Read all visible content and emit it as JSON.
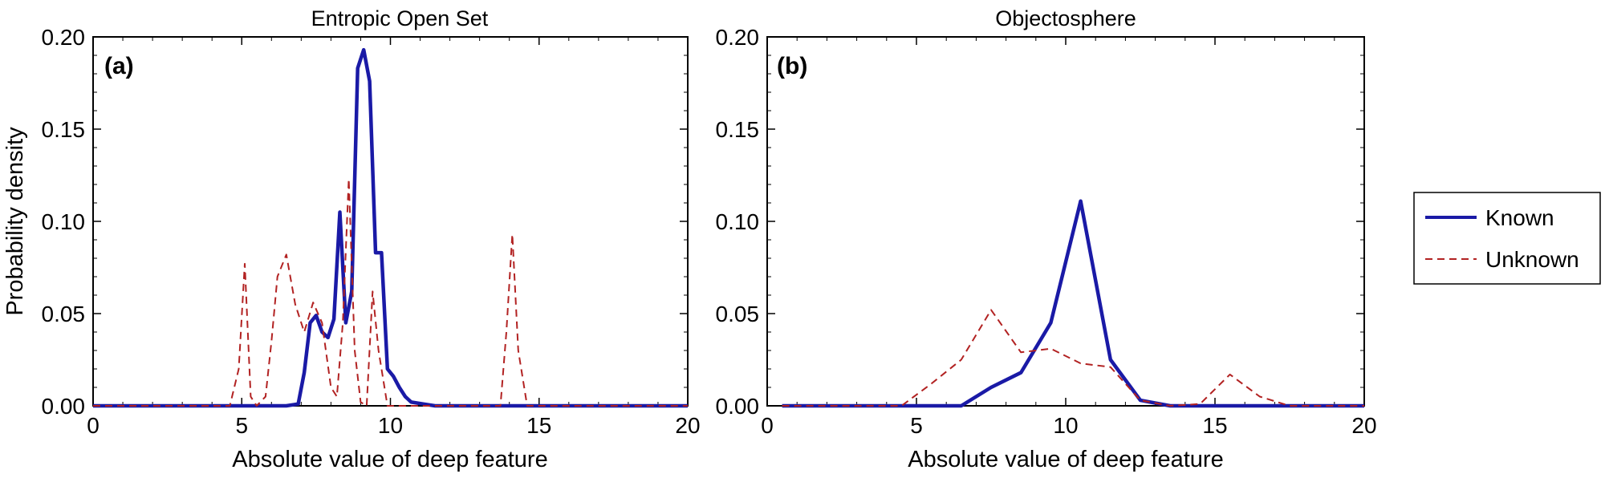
{
  "chart_data": [
    {
      "type": "line",
      "title": "Entropic Open Set",
      "panel_label": "(a)",
      "xlabel": "Absolute value of deep feature",
      "ylabel": "Probability density",
      "xlim": [
        0,
        20
      ],
      "ylim": [
        0,
        0.2
      ],
      "x_ticks": [
        "0",
        "5",
        "10",
        "15",
        "20"
      ],
      "y_ticks": [
        "0.00",
        "0.05",
        "0.10",
        "0.15",
        "0.20"
      ],
      "grid": false,
      "series": [
        {
          "name": "Known",
          "color": "#1a1aa6",
          "style": "solid",
          "x": [
            0,
            6.5,
            6.9,
            7.1,
            7.3,
            7.5,
            7.7,
            7.9,
            8.1,
            8.3,
            8.5,
            8.7,
            8.9,
            9.1,
            9.3,
            9.5,
            9.7,
            9.9,
            10.1,
            10.3,
            10.5,
            10.7,
            11.1,
            11.5,
            20
          ],
          "y": [
            0,
            0,
            0.001,
            0.018,
            0.045,
            0.049,
            0.04,
            0.037,
            0.047,
            0.105,
            0.045,
            0.062,
            0.183,
            0.193,
            0.176,
            0.083,
            0.083,
            0.02,
            0.016,
            0.01,
            0.005,
            0.002,
            0.001,
            0,
            0
          ]
        },
        {
          "name": "Unknown",
          "color": "#b22222",
          "style": "dashed",
          "x": [
            0,
            4.6,
            4.9,
            5.1,
            5.3,
            5.5,
            5.8,
            6.0,
            6.2,
            6.5,
            6.8,
            7.1,
            7.4,
            7.7,
            8.0,
            8.2,
            8.4,
            8.6,
            8.8,
            9.0,
            9.2,
            9.4,
            9.6,
            9.9,
            10.2,
            13.7,
            13.9,
            14.1,
            14.3,
            14.6,
            20
          ],
          "y": [
            0,
            0,
            0.02,
            0.077,
            0.005,
            0,
            0.005,
            0.035,
            0.07,
            0.082,
            0.055,
            0.04,
            0.056,
            0.045,
            0.01,
            0.005,
            0.045,
            0.123,
            0.03,
            0.002,
            0,
            0.062,
            0.03,
            0,
            0,
            0,
            0.04,
            0.093,
            0.03,
            0,
            0
          ]
        }
      ]
    },
    {
      "type": "line",
      "title": "Objectosphere",
      "panel_label": "(b)",
      "xlabel": "Absolute value of deep feature",
      "ylabel": "",
      "xlim": [
        0,
        20
      ],
      "ylim": [
        0,
        0.2
      ],
      "x_ticks": [
        "0",
        "5",
        "10",
        "15",
        "20"
      ],
      "y_ticks": [
        "0.00",
        "0.05",
        "0.10",
        "0.15",
        "0.20"
      ],
      "grid": false,
      "series": [
        {
          "name": "Known",
          "color": "#1a1aa6",
          "style": "solid",
          "x": [
            0.5,
            6.5,
            7.5,
            8.5,
            9.5,
            10.5,
            11.5,
            12.5,
            13.5,
            20
          ],
          "y": [
            0,
            0,
            0.01,
            0.018,
            0.045,
            0.111,
            0.025,
            0.003,
            0,
            0
          ]
        },
        {
          "name": "Unknown",
          "color": "#b22222",
          "style": "dashed",
          "x": [
            0.5,
            4.5,
            5.5,
            6.5,
            7.5,
            8.5,
            9.5,
            10.5,
            11.5,
            12.5,
            13.5,
            14.5,
            15.5,
            16.5,
            17.5,
            20
          ],
          "y": [
            0,
            0,
            0.012,
            0.025,
            0.052,
            0.029,
            0.031,
            0.023,
            0.021,
            0.003,
            0,
            0.001,
            0.017,
            0.005,
            0,
            0
          ]
        }
      ]
    }
  ],
  "legend": {
    "position": "right",
    "entries": [
      {
        "label": "Known",
        "color": "#1a1aa6",
        "style": "solid"
      },
      {
        "label": "Unknown",
        "color": "#b22222",
        "style": "dashed"
      }
    ]
  }
}
